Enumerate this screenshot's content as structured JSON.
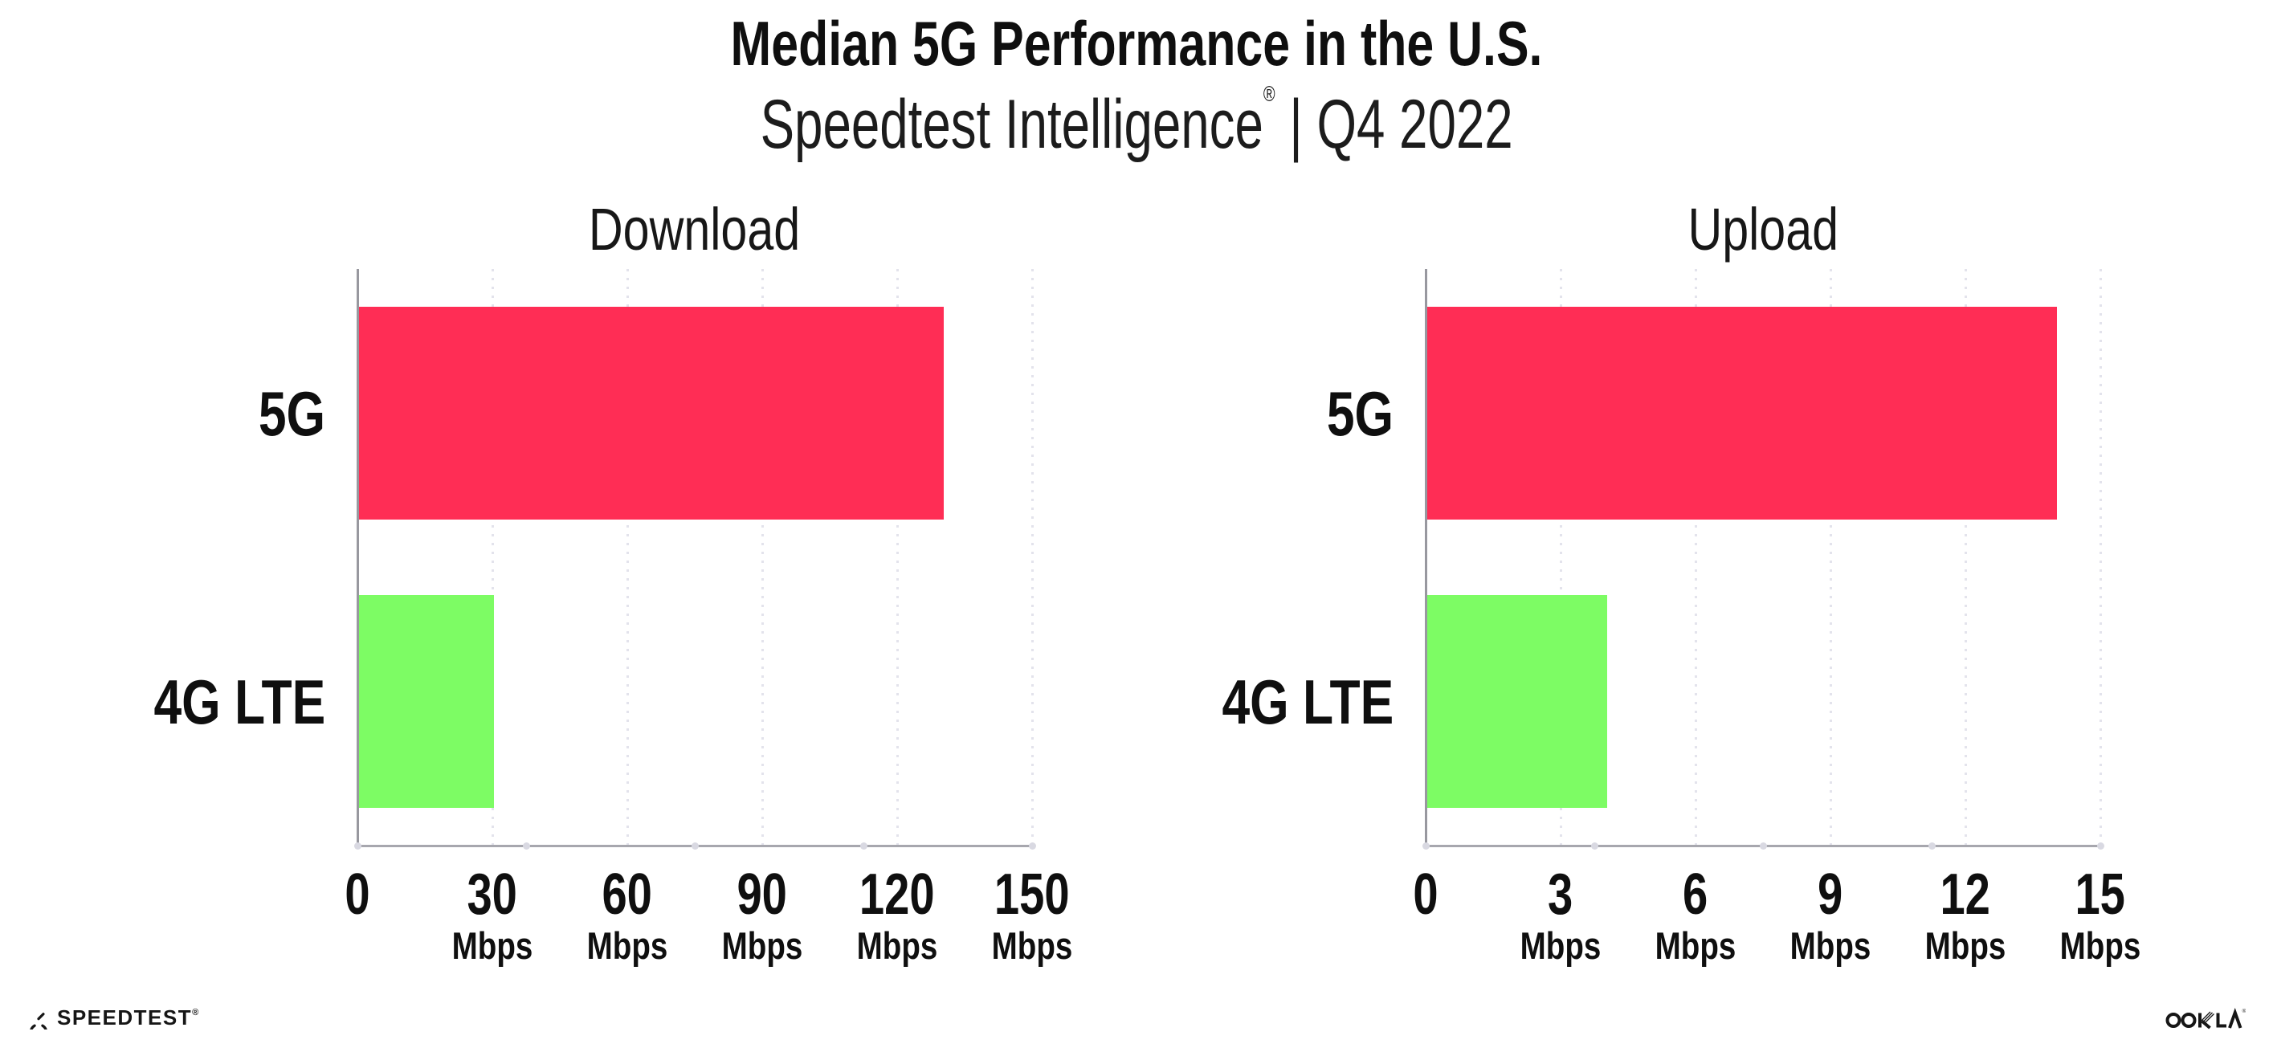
{
  "header": {
    "title": "Median 5G Performance in the U.S.",
    "subtitle_brand": "Speedtest Intelligence",
    "subtitle_reg": "®",
    "subtitle_rest": " | Q4 2022"
  },
  "chart_data": [
    {
      "type": "bar",
      "orientation": "horizontal",
      "title": "Download",
      "categories": [
        "5G",
        "4G LTE"
      ],
      "values": [
        130,
        30
      ],
      "unit": "Mbps",
      "xlim": [
        0,
        150
      ],
      "xticks": [
        0,
        30,
        60,
        90,
        120,
        150
      ],
      "bar_colors": [
        "#FF2D55",
        "#7DFC64"
      ],
      "grid": "dotted-vertical",
      "legend": "none"
    },
    {
      "type": "bar",
      "orientation": "horizontal",
      "title": "Upload",
      "categories": [
        "5G",
        "4G LTE"
      ],
      "values": [
        14,
        4
      ],
      "unit": "Mbps",
      "xlim": [
        0,
        15
      ],
      "xticks": [
        0,
        3,
        6,
        9,
        12,
        15
      ],
      "bar_colors": [
        "#FF2D55",
        "#7DFC64"
      ],
      "grid": "dotted-vertical",
      "legend": "none"
    }
  ],
  "footer": {
    "speedtest_label": "SPEEDTEST",
    "speedtest_reg": "®",
    "ookla_label": "OOKLA",
    "ookla_reg": "®"
  },
  "colors": {
    "bar_5g": "#FF2D55",
    "bar_4g_lte": "#7DFC64",
    "axis": "#a7a7ae",
    "grid_dots": "#e3e3ec",
    "text": "#111111"
  }
}
